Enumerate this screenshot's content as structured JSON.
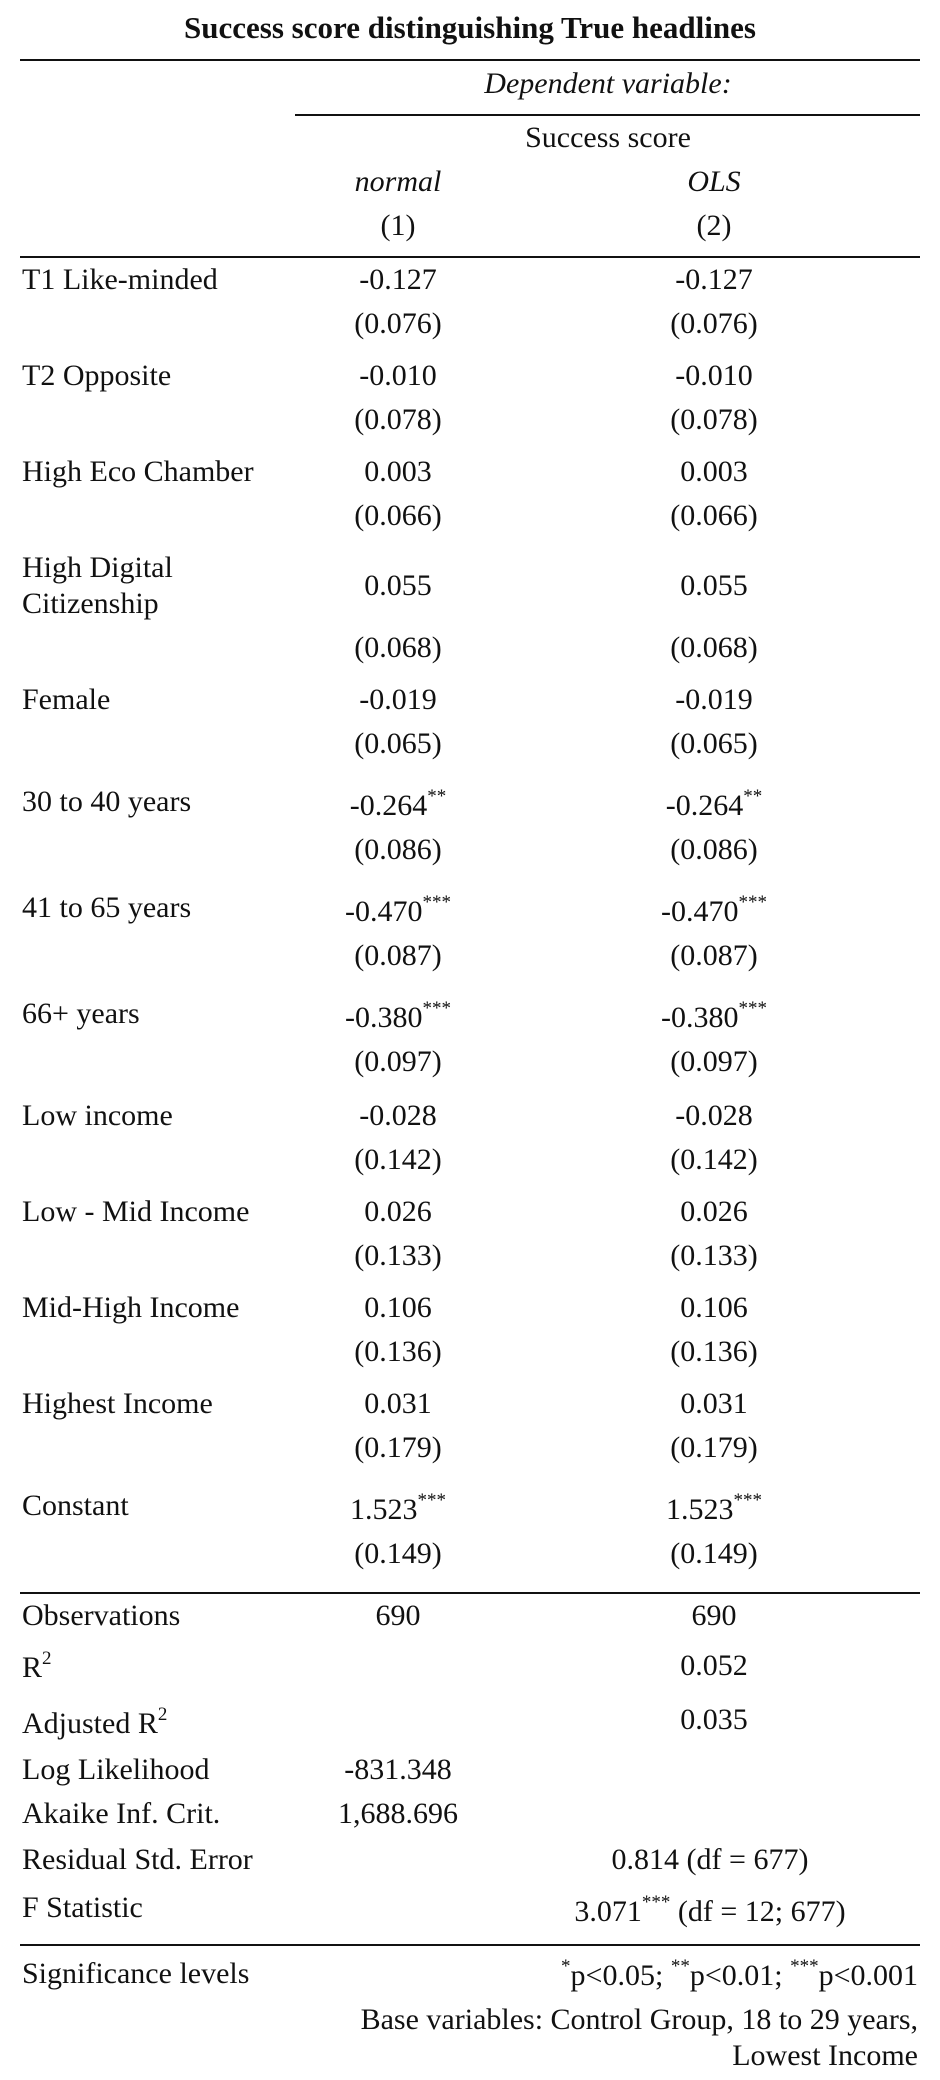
{
  "title": "Success score distinguishing True headlines",
  "header": {
    "dependent_variable": "Dependent variable:",
    "variable_name": "Success score",
    "model1_type": "normal",
    "model2_type": "OLS",
    "model1_num": "(1)",
    "model2_num": "(2)"
  },
  "rows": [
    {
      "label": "T1 Like-minded",
      "m1_coef": "-0.127",
      "m1_stars": "",
      "m1_se": "(0.076)",
      "m2_coef": "-0.127",
      "m2_stars": "",
      "m2_se": "(0.076)"
    },
    {
      "label": "T2 Opposite",
      "m1_coef": "-0.010",
      "m1_stars": "",
      "m1_se": "(0.078)",
      "m2_coef": "-0.010",
      "m2_stars": "",
      "m2_se": "(0.078)"
    },
    {
      "label": "High Eco Chamber",
      "m1_coef": "0.003",
      "m1_stars": "",
      "m1_se": "(0.066)",
      "m2_coef": "0.003",
      "m2_stars": "",
      "m2_se": "(0.066)"
    },
    {
      "label_line1": "High Digital",
      "label_line2": "Citizenship",
      "m1_coef": "0.055",
      "m1_stars": "",
      "m1_se": "(0.068)",
      "m2_coef": "0.055",
      "m2_stars": "",
      "m2_se": "(0.068)"
    },
    {
      "label": "Female",
      "m1_coef": "-0.019",
      "m1_stars": "",
      "m1_se": "(0.065)",
      "m2_coef": "-0.019",
      "m2_stars": "",
      "m2_se": "(0.065)"
    },
    {
      "label": "30 to 40 years",
      "m1_coef": "-0.264",
      "m1_stars": "**",
      "m1_se": "(0.086)",
      "m2_coef": "-0.264",
      "m2_stars": "**",
      "m2_se": "(0.086)"
    },
    {
      "label": "41 to 65 years",
      "m1_coef": "-0.470",
      "m1_stars": "***",
      "m1_se": "(0.087)",
      "m2_coef": "-0.470",
      "m2_stars": "***",
      "m2_se": "(0.087)"
    },
    {
      "label": "66+ years",
      "m1_coef": "-0.380",
      "m1_stars": "***",
      "m1_se": "(0.097)",
      "m2_coef": "-0.380",
      "m2_stars": "***",
      "m2_se": "(0.097)"
    },
    {
      "label": "Low income",
      "m1_coef": "-0.028",
      "m1_stars": "",
      "m1_se": "(0.142)",
      "m2_coef": "-0.028",
      "m2_stars": "",
      "m2_se": "(0.142)"
    },
    {
      "label": "Low - Mid Income",
      "m1_coef": "0.026",
      "m1_stars": "",
      "m1_se": "(0.133)",
      "m2_coef": "0.026",
      "m2_stars": "",
      "m2_se": "(0.133)"
    },
    {
      "label": "Mid-High Income",
      "m1_coef": "0.106",
      "m1_stars": "",
      "m1_se": "(0.136)",
      "m2_coef": "0.106",
      "m2_stars": "",
      "m2_se": "(0.136)"
    },
    {
      "label": "Highest Income",
      "m1_coef": "0.031",
      "m1_stars": "",
      "m1_se": "(0.179)",
      "m2_coef": "0.031",
      "m2_stars": "",
      "m2_se": "(0.179)"
    },
    {
      "label": "Constant",
      "m1_coef": "1.523",
      "m1_stars": "***",
      "m1_se": "(0.149)",
      "m2_coef": "1.523",
      "m2_stars": "***",
      "m2_se": "(0.149)"
    }
  ],
  "stats": {
    "observations": {
      "label": "Observations",
      "m1": "690",
      "m2": "690"
    },
    "r2": {
      "label": "R",
      "sup": "2",
      "m2": "0.052"
    },
    "adj_r2": {
      "label": "Adjusted R",
      "sup": "2",
      "m2": "0.035"
    },
    "loglik": {
      "label": "Log Likelihood",
      "m1": "-831.348"
    },
    "aic": {
      "label": "Akaike Inf. Crit.",
      "m1": "1,688.696"
    },
    "rse": {
      "label": "Residual Std. Error",
      "value": "0.814 (df = 677)"
    },
    "fstat": {
      "label": "F Statistic",
      "value": "3.071",
      "stars": "***",
      "df": " (df = 12; 677)"
    }
  },
  "notes": {
    "label": "Significance levels",
    "s1": "*",
    "p1": "p<0.05; ",
    "s2": "**",
    "p2": "p<0.01; ",
    "s3": "***",
    "p3": "p<0.001",
    "base_line1": "Base variables: Control Group, 18 to 29 years,",
    "base_line2": "Lowest Income"
  }
}
